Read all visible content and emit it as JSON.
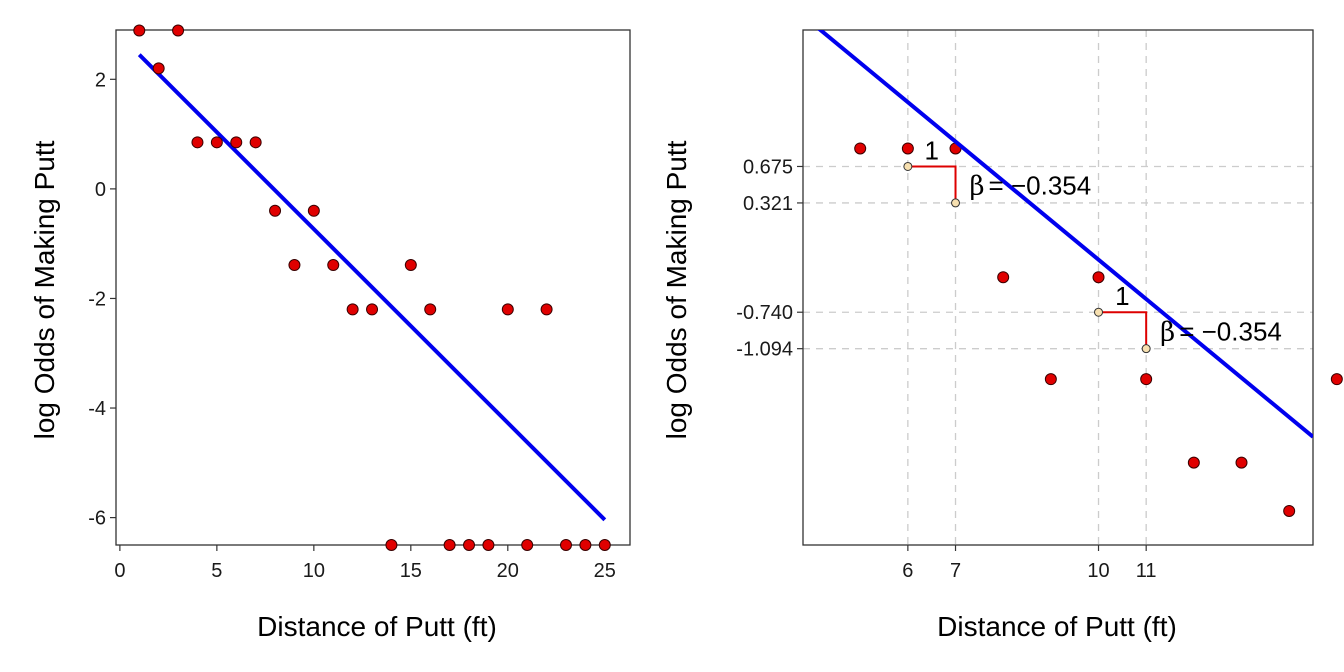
{
  "colors": {
    "points": "#e00000",
    "point_stroke": "#3a0000",
    "fit_line": "#0000ee",
    "annotation": "#dd0000",
    "marker_fill": "#f7e0b0",
    "grid": "#cccccc",
    "frame": "#333333"
  },
  "chart_data": [
    {
      "type": "scatter",
      "xlabel": "Distance of Putt (ft)",
      "ylabel": "log Odds of Making Putt",
      "xlim": [
        -0.2,
        26.3
      ],
      "ylim": [
        -6.5,
        2.9
      ],
      "xticks": [
        0,
        5,
        10,
        15,
        20,
        25
      ],
      "xtick_labels": [
        "0",
        "5",
        "10",
        "15",
        "20",
        "25"
      ],
      "yticks": [
        2,
        0,
        -2,
        -4,
        -6
      ],
      "ytick_labels": [
        "2",
        "0",
        "-2",
        "-4",
        "-6"
      ],
      "grid": false,
      "points": {
        "x": [
          1,
          2,
          3,
          4,
          5,
          6,
          7,
          8,
          9,
          10,
          11,
          12,
          13,
          14,
          15,
          16,
          17,
          18,
          19,
          20,
          21,
          22,
          23,
          24,
          25
        ],
        "y": [
          2.89,
          2.2,
          2.89,
          0.85,
          0.85,
          0.85,
          0.85,
          -0.4,
          -1.39,
          -0.4,
          -1.39,
          -2.2,
          -2.2,
          -6.5,
          -1.39,
          -2.2,
          -6.5,
          -6.5,
          -6.5,
          -2.2,
          -6.5,
          -2.2,
          -6.5,
          -6.5,
          -6.5
        ]
      },
      "fit_line": {
        "x": [
          1,
          25
        ],
        "y": [
          2.45,
          -6.04
        ]
      }
    },
    {
      "type": "scatter",
      "xlabel": "Distance of Putt (ft)",
      "ylabel": "log Odds of Making Putt",
      "xlim": [
        3.8,
        14.5
      ],
      "ylim": [
        -3.0,
        2.0
      ],
      "xticks": [
        6,
        7,
        10,
        11
      ],
      "xtick_labels": [
        "6",
        "7",
        "10",
        "11"
      ],
      "yticks": [
        0.675,
        0.321,
        -0.74,
        -1.094
      ],
      "ytick_labels": [
        "0.675",
        "0.321",
        "-0.740",
        "-1.094"
      ],
      "grid": true,
      "points": {
        "x": [
          5,
          6,
          7,
          8,
          9,
          10,
          11,
          12,
          13,
          14,
          15
        ],
        "y": [
          0.85,
          0.85,
          0.85,
          -0.4,
          -1.39,
          -0.4,
          -1.39,
          -2.2,
          -2.2,
          -2.67,
          -1.39
        ]
      },
      "fit_line": {
        "x": [
          3.8,
          14.5
        ],
        "y": [
          2.14,
          -1.95
        ]
      },
      "slope_triangles": [
        {
          "x0": 6,
          "x1": 7,
          "y0": 0.675,
          "y1": 0.321,
          "run_label": "1",
          "beta_symbol": "β",
          "beta_text": "= −0.354"
        },
        {
          "x0": 10,
          "x1": 11,
          "y0": -0.74,
          "y1": -1.094,
          "run_label": "1",
          "beta_symbol": "β",
          "beta_text": "= −0.354"
        }
      ]
    }
  ]
}
